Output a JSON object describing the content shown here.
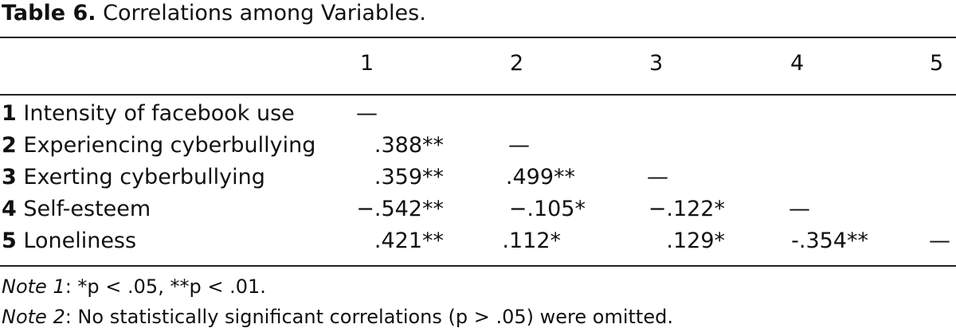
{
  "caption": {
    "label": "Table 6.",
    "title": "Correlations among Variables."
  },
  "columns": [
    "1",
    "2",
    "3",
    "4",
    "5"
  ],
  "rows": [
    {
      "num": "1",
      "label": "Intensity of facebook use",
      "cells": [
        "—",
        "",
        "",
        "",
        ""
      ]
    },
    {
      "num": "2",
      "label": "Experiencing cyberbullying",
      "cells": [
        ".388**",
        "—",
        "",
        "",
        ""
      ]
    },
    {
      "num": "3",
      "label": "Exerting cyberbullying",
      "cells": [
        ".359**",
        ".499**",
        "—",
        "",
        ""
      ]
    },
    {
      "num": "4",
      "label": "Self-esteem",
      "cells": [
        "−.542**",
        "−.105*",
        "−.122*",
        "—",
        ""
      ]
    },
    {
      "num": "5",
      "label": "Loneliness",
      "cells": [
        ".421**",
        ".112*",
        ".129*",
        "-.354**",
        "—"
      ]
    }
  ],
  "notes": {
    "note1_label": "Note 1",
    "note1_text": ": *p < .05, **p < .01.",
    "note2_label": "Note 2",
    "note2_text": ": No statistically significant correlations (p > .05) were omitted."
  }
}
